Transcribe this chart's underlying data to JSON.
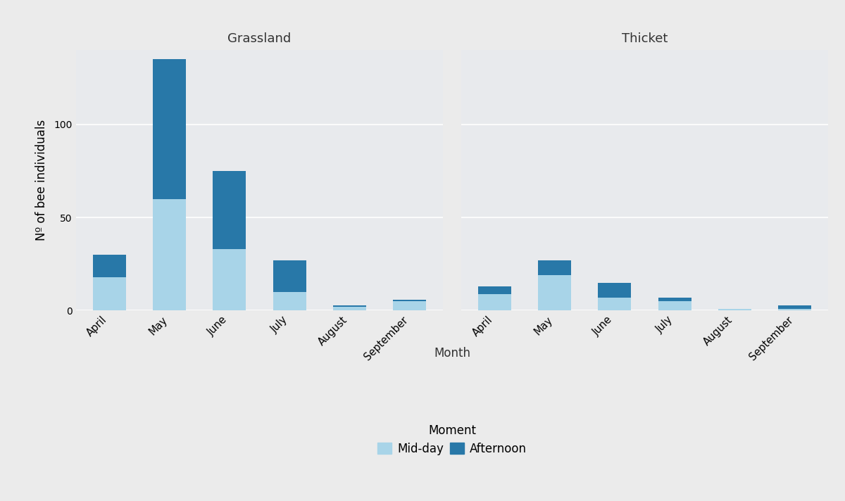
{
  "months": [
    "April",
    "May",
    "June",
    "July",
    "August",
    "September"
  ],
  "grassland": {
    "midday": [
      18,
      60,
      33,
      10,
      2,
      5
    ],
    "afternoon": [
      12,
      75,
      42,
      17,
      1,
      1
    ]
  },
  "thicket": {
    "midday": [
      9,
      19,
      7,
      5,
      1,
      1
    ],
    "afternoon": [
      4,
      8,
      8,
      2,
      0,
      2
    ]
  },
  "color_midday": "#A8D4E8",
  "color_afternoon": "#2878A8",
  "panel_bg": "#EBEBEB",
  "plot_bg": "#E8EAED",
  "strip_bg": "#D3D3D3",
  "fig_bottom_bg": "#FFFFFF",
  "strip_text_color": "#333333",
  "ylabel": "Nº of bee individuals",
  "xlabel": "Month",
  "legend_title": "Moment",
  "legend_midday": "Mid-day",
  "legend_afternoon": "Afternoon",
  "title_grassland": "Grassland",
  "title_thicket": "Thicket",
  "ylim": [
    0,
    140
  ],
  "yticks": [
    0,
    50,
    100
  ],
  "grid_color": "#FFFFFF",
  "bar_width": 0.55
}
